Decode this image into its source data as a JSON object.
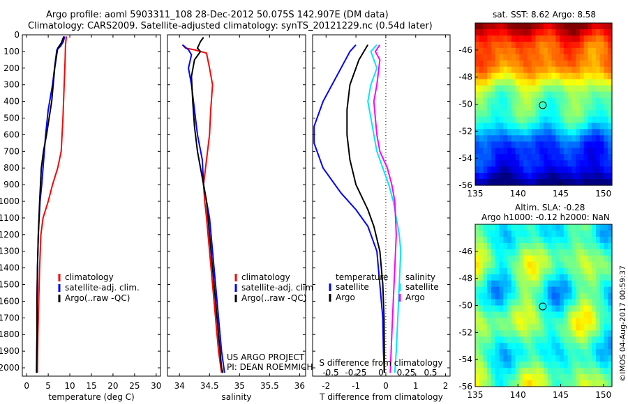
{
  "header": {
    "line1": "Argo profile: aoml 5903311_108 28-Dec-2012 50.075S 142.907E (DM data)",
    "line2": "Climatology: CARS2009. Satellite-adjusted climatology: synTS_20121229.nc (0.54d later)"
  },
  "credits": {
    "project": "US ARGO PROJECT",
    "pi": "PI: DEAN ROEMMICH"
  },
  "sst_title": "sat. SST: 8.62 Argo: 8.58",
  "sla_title1": "Altim. SLA: -0.28",
  "sla_title2": "Argo h1000: -0.12 h2000: NaN",
  "footer_stamp": "©IMOS 04-Aug-2017 00:59:37",
  "colors": {
    "climatology": "#ff0000",
    "satellite": "#0000ff",
    "argo": "#000000",
    "sat_salinity": "#00e5ff",
    "argo_salinity": "#ff00ff"
  },
  "chart_data": [
    {
      "type": "line",
      "xlabel": "temperature (deg C)",
      "ylim": [
        2050,
        0
      ],
      "xlim": [
        -1,
        31
      ],
      "xticks": [
        0,
        5,
        10,
        15,
        20,
        25,
        30
      ],
      "yticks": [
        0,
        100,
        200,
        300,
        400,
        500,
        600,
        700,
        800,
        900,
        1000,
        1100,
        1200,
        1300,
        1400,
        1500,
        1600,
        1700,
        1800,
        1900,
        2000
      ],
      "legend": [
        "climatology",
        "satellite-adj. clim.",
        "Argo(..raw -QC)"
      ],
      "series": [
        {
          "name": "climatology",
          "color": "#ff0000",
          "points": [
            [
              9.2,
              10
            ],
            [
              9.0,
              60
            ],
            [
              8.9,
              150
            ],
            [
              8.7,
              300
            ],
            [
              8.4,
              500
            ],
            [
              8.0,
              700
            ],
            [
              7.2,
              800
            ],
            [
              6.0,
              900
            ],
            [
              5.0,
              1000
            ],
            [
              3.8,
              1100
            ],
            [
              3.3,
              1200
            ],
            [
              3.0,
              1400
            ],
            [
              2.8,
              1600
            ],
            [
              2.6,
              1800
            ],
            [
              2.5,
              2000
            ],
            [
              2.5,
              2030
            ]
          ]
        },
        {
          "name": "satellite-adj. clim.",
          "color": "#0000ff",
          "points": [
            [
              8.8,
              10
            ],
            [
              8.5,
              40
            ],
            [
              7.8,
              70
            ],
            [
              7.0,
              90
            ],
            [
              6.7,
              150
            ],
            [
              6.0,
              300
            ],
            [
              5.0,
              450
            ],
            [
              4.4,
              600
            ],
            [
              3.8,
              800
            ],
            [
              3.5,
              900
            ],
            [
              3.1,
              1000
            ],
            [
              2.7,
              1200
            ],
            [
              2.5,
              1400
            ],
            [
              2.4,
              1600
            ],
            [
              2.4,
              1800
            ],
            [
              2.3,
              2000
            ],
            [
              2.3,
              2030
            ]
          ]
        },
        {
          "name": "Argo(..raw -QC)",
          "color": "#000000",
          "points": [
            [
              8.6,
              10
            ],
            [
              8.0,
              50
            ],
            [
              7.2,
              80
            ],
            [
              6.5,
              200
            ],
            [
              5.8,
              400
            ],
            [
              4.6,
              600
            ],
            [
              3.9,
              700
            ],
            [
              3.4,
              800
            ],
            [
              3.0,
              1000
            ],
            [
              2.7,
              1200
            ],
            [
              2.5,
              1400
            ],
            [
              2.4,
              1600
            ],
            [
              2.4,
              1800
            ],
            [
              2.3,
              2000
            ],
            [
              2.3,
              2030
            ]
          ]
        }
      ]
    },
    {
      "type": "line",
      "xlabel": "salinity",
      "ylim": [
        2050,
        0
      ],
      "xlim": [
        33.8,
        36.1
      ],
      "xticks": [
        34,
        34.5,
        35,
        35.5,
        36
      ],
      "legend": [
        "climatology",
        "satellite-adj. clim.",
        "Argo(..raw -QC)"
      ],
      "series": [
        {
          "name": "climatology",
          "color": "#ff0000",
          "points": [
            [
              34.05,
              60
            ],
            [
              34.1,
              80
            ],
            [
              34.25,
              90
            ],
            [
              34.45,
              110
            ],
            [
              34.5,
              200
            ],
            [
              34.55,
              300
            ],
            [
              34.52,
              450
            ],
            [
              34.5,
              600
            ],
            [
              34.45,
              750
            ],
            [
              34.4,
              900
            ],
            [
              34.42,
              1000
            ],
            [
              34.45,
              1100
            ],
            [
              34.5,
              1300
            ],
            [
              34.55,
              1500
            ],
            [
              34.6,
              1700
            ],
            [
              34.65,
              1900
            ],
            [
              34.7,
              2030
            ]
          ]
        },
        {
          "name": "satellite-adj. clim.",
          "color": "#0000ff",
          "points": [
            [
              34.05,
              60
            ],
            [
              34.1,
              75
            ],
            [
              34.15,
              90
            ],
            [
              34.2,
              120
            ],
            [
              34.15,
              200
            ],
            [
              34.2,
              300
            ],
            [
              34.25,
              450
            ],
            [
              34.3,
              600
            ],
            [
              34.38,
              750
            ],
            [
              34.4,
              900
            ],
            [
              34.45,
              1000
            ],
            [
              34.5,
              1100
            ],
            [
              34.55,
              1300
            ],
            [
              34.6,
              1500
            ],
            [
              34.65,
              1700
            ],
            [
              34.7,
              1900
            ],
            [
              34.75,
              2030
            ]
          ]
        },
        {
          "name": "Argo(..raw -QC)",
          "color": "#000000",
          "points": [
            [
              34.4,
              15
            ],
            [
              34.35,
              40
            ],
            [
              34.3,
              80
            ],
            [
              34.35,
              100
            ],
            [
              34.25,
              150
            ],
            [
              34.2,
              250
            ],
            [
              34.22,
              400
            ],
            [
              34.25,
              550
            ],
            [
              34.3,
              700
            ],
            [
              34.4,
              900
            ],
            [
              34.45,
              1000
            ],
            [
              34.5,
              1200
            ],
            [
              34.55,
              1400
            ],
            [
              34.6,
              1600
            ],
            [
              34.65,
              1800
            ],
            [
              34.7,
              2000
            ],
            [
              34.72,
              2030
            ]
          ]
        }
      ]
    },
    {
      "type": "line",
      "xlabel": "T difference from climatology",
      "x2label": "S difference from climatology",
      "ylim": [
        2050,
        0
      ],
      "xlim": [
        -2.45,
        2.15
      ],
      "xticks": [
        -2,
        -1,
        0,
        1,
        2
      ],
      "x2ticks": [
        "-0.5",
        "-0.25",
        "0",
        "0.25",
        "0.5"
      ],
      "legend_temperature": [
        "temperature",
        "satellite",
        "Argo"
      ],
      "legend_salinity": [
        "salinity",
        "satellite",
        "Argo"
      ],
      "series": [
        {
          "name": "satellite",
          "color": "#0000ff",
          "points": [
            [
              -1.0,
              60
            ],
            [
              -1.2,
              100
            ],
            [
              -1.5,
              200
            ],
            [
              -2.1,
              400
            ],
            [
              -2.4,
              550
            ],
            [
              -2.4,
              650
            ],
            [
              -2.1,
              800
            ],
            [
              -1.5,
              950
            ],
            [
              -1.0,
              1050
            ],
            [
              -0.6,
              1150
            ],
            [
              -0.3,
              1300
            ],
            [
              -0.2,
              1500
            ],
            [
              -0.1,
              1700
            ],
            [
              -0.08,
              1900
            ],
            [
              -0.05,
              2030
            ]
          ]
        },
        {
          "name": "Argo",
          "color": "#000000",
          "points": [
            [
              -0.6,
              60
            ],
            [
              -0.9,
              150
            ],
            [
              -1.2,
              300
            ],
            [
              -1.3,
              450
            ],
            [
              -1.3,
              600
            ],
            [
              -1.2,
              750
            ],
            [
              -1.0,
              900
            ],
            [
              -0.6,
              1050
            ],
            [
              -0.4,
              1150
            ],
            [
              -0.2,
              1300
            ],
            [
              -0.1,
              1500
            ],
            [
              -0.06,
              1700
            ],
            [
              -0.05,
              1900
            ],
            [
              -0.05,
              2030
            ]
          ]
        },
        {
          "name": "satellite",
          "color": "#00e5ff",
          "points": [
            [
              -0.3,
              60
            ],
            [
              -0.5,
              100
            ],
            [
              -0.3,
              200
            ],
            [
              -0.5,
              300
            ],
            [
              -0.6,
              400
            ],
            [
              -0.5,
              500
            ],
            [
              -0.4,
              600
            ],
            [
              -0.3,
              700
            ],
            [
              -0.1,
              800
            ],
            [
              0.1,
              900
            ],
            [
              0.25,
              1000
            ],
            [
              0.35,
              1100
            ],
            [
              0.45,
              1200
            ],
            [
              0.5,
              1300
            ],
            [
              0.45,
              1500
            ],
            [
              0.4,
              1700
            ],
            [
              0.35,
              1900
            ],
            [
              0.3,
              2030
            ]
          ]
        },
        {
          "name": "Argo",
          "color": "#ff00ff",
          "points": [
            [
              -0.2,
              60
            ],
            [
              -0.35,
              100
            ],
            [
              -0.2,
              150
            ],
            [
              -0.3,
              300
            ],
            [
              -0.4,
              400
            ],
            [
              -0.35,
              500
            ],
            [
              -0.3,
              600
            ],
            [
              -0.2,
              700
            ],
            [
              0.05,
              800
            ],
            [
              0.2,
              900
            ],
            [
              0.3,
              1000
            ],
            [
              0.35,
              1200
            ],
            [
              0.3,
              1400
            ],
            [
              0.25,
              1600
            ],
            [
              0.2,
              1800
            ],
            [
              0.15,
              2030
            ]
          ]
        }
      ]
    },
    {
      "type": "heatmap",
      "title": "sat. SST: 8.62 Argo: 8.58",
      "xlim": [
        135,
        151
      ],
      "ylim": [
        -56,
        -44
      ],
      "xticks": [
        135,
        140,
        145,
        150
      ],
      "yticks": [
        -46,
        -48,
        -50,
        -52,
        -54,
        -56
      ],
      "marker": [
        142.907,
        -50.075
      ]
    },
    {
      "type": "heatmap",
      "title": "Altim. SLA: -0.28",
      "subtitle": "Argo h1000: -0.12 h2000: NaN",
      "xlim": [
        135,
        151
      ],
      "ylim": [
        -56,
        -44
      ],
      "xticks": [
        135,
        140,
        145,
        150
      ],
      "yticks": [
        -46,
        -48,
        -50,
        -52,
        -54,
        -56
      ],
      "marker": [
        142.907,
        -50.075
      ]
    }
  ]
}
